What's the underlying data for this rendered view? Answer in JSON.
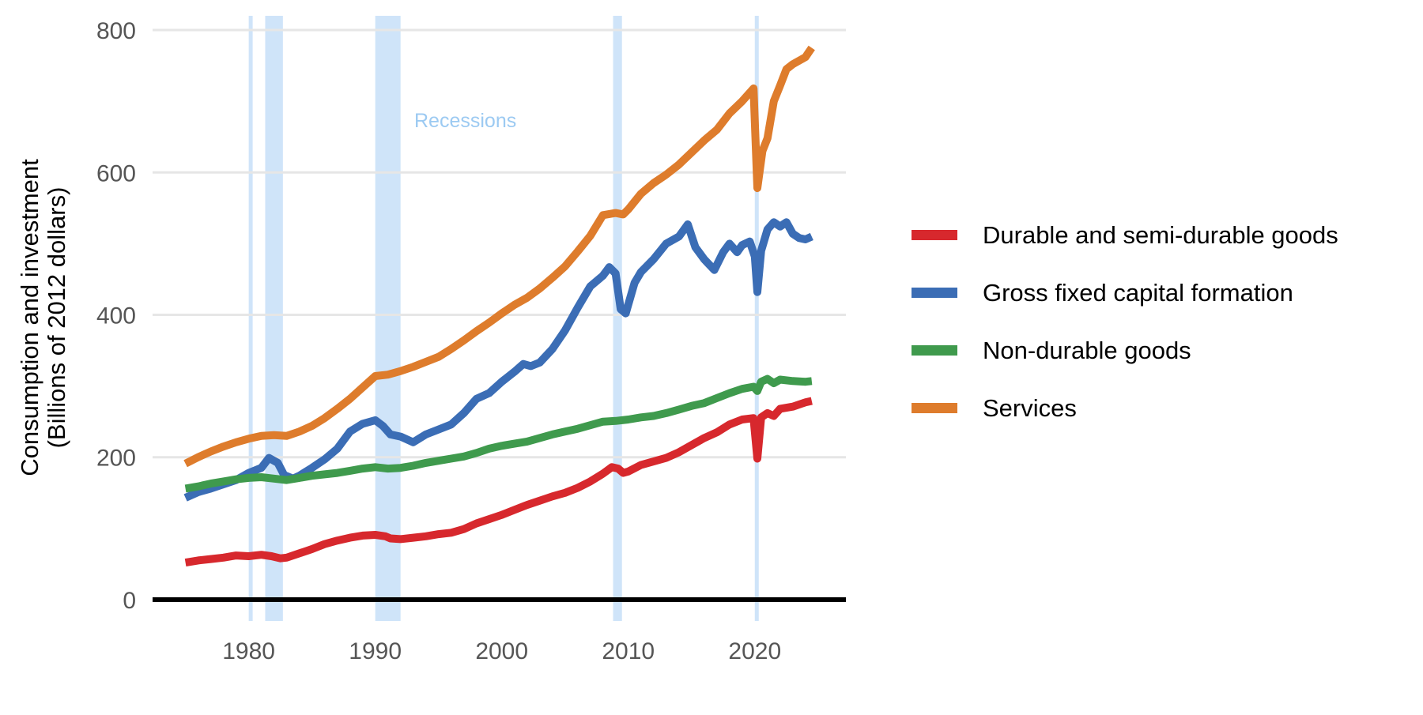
{
  "chart_data": {
    "type": "line",
    "ylabel_line1": "Consumption and investment",
    "ylabel_line2": "(Billions of 2012 dollars)",
    "xlim": [
      1972.4,
      2027.2
    ],
    "ylim": [
      -30,
      820
    ],
    "x_ticks": [
      1980,
      1990,
      2000,
      2010,
      2020
    ],
    "x_tick_labels": [
      "1980",
      "1990",
      "2000",
      "2010",
      "2020"
    ],
    "y_ticks": [
      0,
      200,
      400,
      600,
      800
    ],
    "y_tick_labels": [
      "0",
      "200",
      "400",
      "600",
      "800"
    ],
    "grid": "horizontal",
    "zero_line": true,
    "legend_position": "right",
    "recession_label": "Recessions",
    "recession_color": "#cfe4f9",
    "recessions": [
      [
        1980.0,
        1980.3
      ],
      [
        1981.3,
        1982.7
      ],
      [
        1990.0,
        1992.0
      ],
      [
        2008.8,
        2009.5
      ],
      [
        2020.0,
        2020.2
      ]
    ],
    "series": [
      {
        "name": "Durable and semi-durable goods",
        "color": "#d7282d",
        "points": [
          [
            1975.0,
            52
          ],
          [
            1976.0,
            55
          ],
          [
            1977.0,
            57
          ],
          [
            1978.0,
            59
          ],
          [
            1979.0,
            62
          ],
          [
            1980.0,
            61
          ],
          [
            1981.0,
            63
          ],
          [
            1981.8,
            61
          ],
          [
            1982.5,
            58
          ],
          [
            1983.0,
            59
          ],
          [
            1984.0,
            65
          ],
          [
            1985.0,
            71
          ],
          [
            1986.0,
            78
          ],
          [
            1987.0,
            83
          ],
          [
            1988.0,
            87
          ],
          [
            1989.0,
            90
          ],
          [
            1990.0,
            91
          ],
          [
            1990.8,
            89
          ],
          [
            1991.2,
            86
          ],
          [
            1992.0,
            85
          ],
          [
            1993.0,
            87
          ],
          [
            1994.0,
            89
          ],
          [
            1995.0,
            92
          ],
          [
            1996.0,
            94
          ],
          [
            1997.0,
            99
          ],
          [
            1998.0,
            107
          ],
          [
            1999.0,
            113
          ],
          [
            2000.0,
            119
          ],
          [
            2001.0,
            126
          ],
          [
            2002.0,
            133
          ],
          [
            2003.0,
            139
          ],
          [
            2004.0,
            145
          ],
          [
            2005.0,
            150
          ],
          [
            2006.0,
            157
          ],
          [
            2007.0,
            166
          ],
          [
            2008.0,
            177
          ],
          [
            2008.7,
            186
          ],
          [
            2009.2,
            184
          ],
          [
            2009.6,
            178
          ],
          [
            2010.0,
            180
          ],
          [
            2011.0,
            189
          ],
          [
            2012.0,
            194
          ],
          [
            2013.0,
            199
          ],
          [
            2014.0,
            207
          ],
          [
            2015.0,
            217
          ],
          [
            2016.0,
            227
          ],
          [
            2017.0,
            235
          ],
          [
            2018.0,
            246
          ],
          [
            2019.0,
            253
          ],
          [
            2019.9,
            255
          ],
          [
            2020.2,
            198
          ],
          [
            2020.5,
            256
          ],
          [
            2021.0,
            262
          ],
          [
            2021.5,
            258
          ],
          [
            2022.0,
            268
          ],
          [
            2023.0,
            271
          ],
          [
            2024.0,
            277
          ],
          [
            2024.5,
            279
          ]
        ]
      },
      {
        "name": "Gross fixed capital formation",
        "color": "#3b6db5",
        "points": [
          [
            1975.0,
            143
          ],
          [
            1976.0,
            151
          ],
          [
            1977.0,
            156
          ],
          [
            1978.0,
            162
          ],
          [
            1979.0,
            168
          ],
          [
            1980.0,
            178
          ],
          [
            1981.0,
            185
          ],
          [
            1981.6,
            199
          ],
          [
            1982.3,
            192
          ],
          [
            1982.8,
            175
          ],
          [
            1983.5,
            170
          ],
          [
            1984.0,
            174
          ],
          [
            1985.0,
            185
          ],
          [
            1986.0,
            197
          ],
          [
            1987.0,
            212
          ],
          [
            1988.0,
            236
          ],
          [
            1989.0,
            247
          ],
          [
            1990.0,
            252
          ],
          [
            1990.6,
            244
          ],
          [
            1991.2,
            232
          ],
          [
            1992.0,
            229
          ],
          [
            1993.0,
            221
          ],
          [
            1994.0,
            232
          ],
          [
            1995.0,
            239
          ],
          [
            1996.0,
            246
          ],
          [
            1997.0,
            262
          ],
          [
            1998.0,
            282
          ],
          [
            1999.0,
            290
          ],
          [
            2000.0,
            306
          ],
          [
            2001.0,
            320
          ],
          [
            2001.7,
            331
          ],
          [
            2002.3,
            328
          ],
          [
            2003.0,
            333
          ],
          [
            2004.0,
            352
          ],
          [
            2005.0,
            378
          ],
          [
            2006.0,
            410
          ],
          [
            2007.0,
            440
          ],
          [
            2008.0,
            455
          ],
          [
            2008.5,
            467
          ],
          [
            2009.0,
            458
          ],
          [
            2009.4,
            408
          ],
          [
            2009.8,
            402
          ],
          [
            2010.5,
            445
          ],
          [
            2011.0,
            460
          ],
          [
            2012.0,
            478
          ],
          [
            2013.0,
            500
          ],
          [
            2014.0,
            510
          ],
          [
            2014.7,
            527
          ],
          [
            2015.3,
            495
          ],
          [
            2016.0,
            478
          ],
          [
            2016.8,
            463
          ],
          [
            2017.5,
            488
          ],
          [
            2018.0,
            500
          ],
          [
            2018.6,
            488
          ],
          [
            2019.0,
            498
          ],
          [
            2019.6,
            503
          ],
          [
            2020.0,
            482
          ],
          [
            2020.2,
            432
          ],
          [
            2020.5,
            490
          ],
          [
            2021.0,
            520
          ],
          [
            2021.5,
            530
          ],
          [
            2022.0,
            524
          ],
          [
            2022.5,
            530
          ],
          [
            2023.0,
            514
          ],
          [
            2023.5,
            508
          ],
          [
            2024.0,
            506
          ],
          [
            2024.5,
            510
          ]
        ]
      },
      {
        "name": "Non-durable goods",
        "color": "#3f9a4d",
        "points": [
          [
            1975.0,
            156
          ],
          [
            1976.0,
            159
          ],
          [
            1977.0,
            163
          ],
          [
            1978.0,
            166
          ],
          [
            1979.0,
            169
          ],
          [
            1980.0,
            171
          ],
          [
            1981.0,
            172
          ],
          [
            1982.0,
            170
          ],
          [
            1983.0,
            168
          ],
          [
            1984.0,
            171
          ],
          [
            1985.0,
            174
          ],
          [
            1986.0,
            176
          ],
          [
            1987.0,
            178
          ],
          [
            1988.0,
            181
          ],
          [
            1989.0,
            184
          ],
          [
            1990.0,
            186
          ],
          [
            1991.0,
            184
          ],
          [
            1992.0,
            185
          ],
          [
            1993.0,
            188
          ],
          [
            1994.0,
            192
          ],
          [
            1995.0,
            195
          ],
          [
            1996.0,
            198
          ],
          [
            1997.0,
            201
          ],
          [
            1998.0,
            206
          ],
          [
            1999.0,
            212
          ],
          [
            2000.0,
            216
          ],
          [
            2001.0,
            219
          ],
          [
            2002.0,
            222
          ],
          [
            2003.0,
            227
          ],
          [
            2004.0,
            232
          ],
          [
            2005.0,
            236
          ],
          [
            2006.0,
            240
          ],
          [
            2007.0,
            245
          ],
          [
            2008.0,
            250
          ],
          [
            2009.0,
            251
          ],
          [
            2010.0,
            253
          ],
          [
            2011.0,
            256
          ],
          [
            2012.0,
            258
          ],
          [
            2013.0,
            262
          ],
          [
            2014.0,
            267
          ],
          [
            2015.0,
            272
          ],
          [
            2016.0,
            276
          ],
          [
            2017.0,
            283
          ],
          [
            2018.0,
            290
          ],
          [
            2019.0,
            296
          ],
          [
            2019.9,
            299
          ],
          [
            2020.2,
            293
          ],
          [
            2020.5,
            306
          ],
          [
            2021.0,
            310
          ],
          [
            2021.5,
            304
          ],
          [
            2022.0,
            309
          ],
          [
            2023.0,
            307
          ],
          [
            2024.0,
            306
          ],
          [
            2024.5,
            307
          ]
        ]
      },
      {
        "name": "Services",
        "color": "#de7c2c",
        "points": [
          [
            1975.0,
            191
          ],
          [
            1976.0,
            200
          ],
          [
            1977.0,
            208
          ],
          [
            1978.0,
            215
          ],
          [
            1979.0,
            221
          ],
          [
            1980.0,
            226
          ],
          [
            1981.0,
            230
          ],
          [
            1982.0,
            231
          ],
          [
            1983.0,
            230
          ],
          [
            1984.0,
            236
          ],
          [
            1985.0,
            244
          ],
          [
            1986.0,
            255
          ],
          [
            1987.0,
            268
          ],
          [
            1988.0,
            282
          ],
          [
            1989.0,
            298
          ],
          [
            1990.0,
            314
          ],
          [
            1991.0,
            316
          ],
          [
            1992.0,
            321
          ],
          [
            1993.0,
            327
          ],
          [
            1994.0,
            334
          ],
          [
            1995.0,
            341
          ],
          [
            1996.0,
            352
          ],
          [
            1997.0,
            364
          ],
          [
            1998.0,
            377
          ],
          [
            1999.0,
            389
          ],
          [
            2000.0,
            402
          ],
          [
            2001.0,
            414
          ],
          [
            2002.0,
            424
          ],
          [
            2003.0,
            437
          ],
          [
            2004.0,
            452
          ],
          [
            2005.0,
            468
          ],
          [
            2006.0,
            489
          ],
          [
            2007.0,
            511
          ],
          [
            2008.0,
            540
          ],
          [
            2009.0,
            543
          ],
          [
            2009.6,
            541
          ],
          [
            2010.0,
            548
          ],
          [
            2011.0,
            570
          ],
          [
            2012.0,
            585
          ],
          [
            2013.0,
            597
          ],
          [
            2014.0,
            611
          ],
          [
            2015.0,
            628
          ],
          [
            2016.0,
            645
          ],
          [
            2017.0,
            660
          ],
          [
            2018.0,
            683
          ],
          [
            2019.0,
            700
          ],
          [
            2019.9,
            718
          ],
          [
            2020.2,
            578
          ],
          [
            2020.6,
            630
          ],
          [
            2021.0,
            648
          ],
          [
            2021.5,
            700
          ],
          [
            2022.0,
            722
          ],
          [
            2022.5,
            745
          ],
          [
            2023.0,
            752
          ],
          [
            2024.0,
            762
          ],
          [
            2024.5,
            775
          ]
        ]
      }
    ]
  }
}
